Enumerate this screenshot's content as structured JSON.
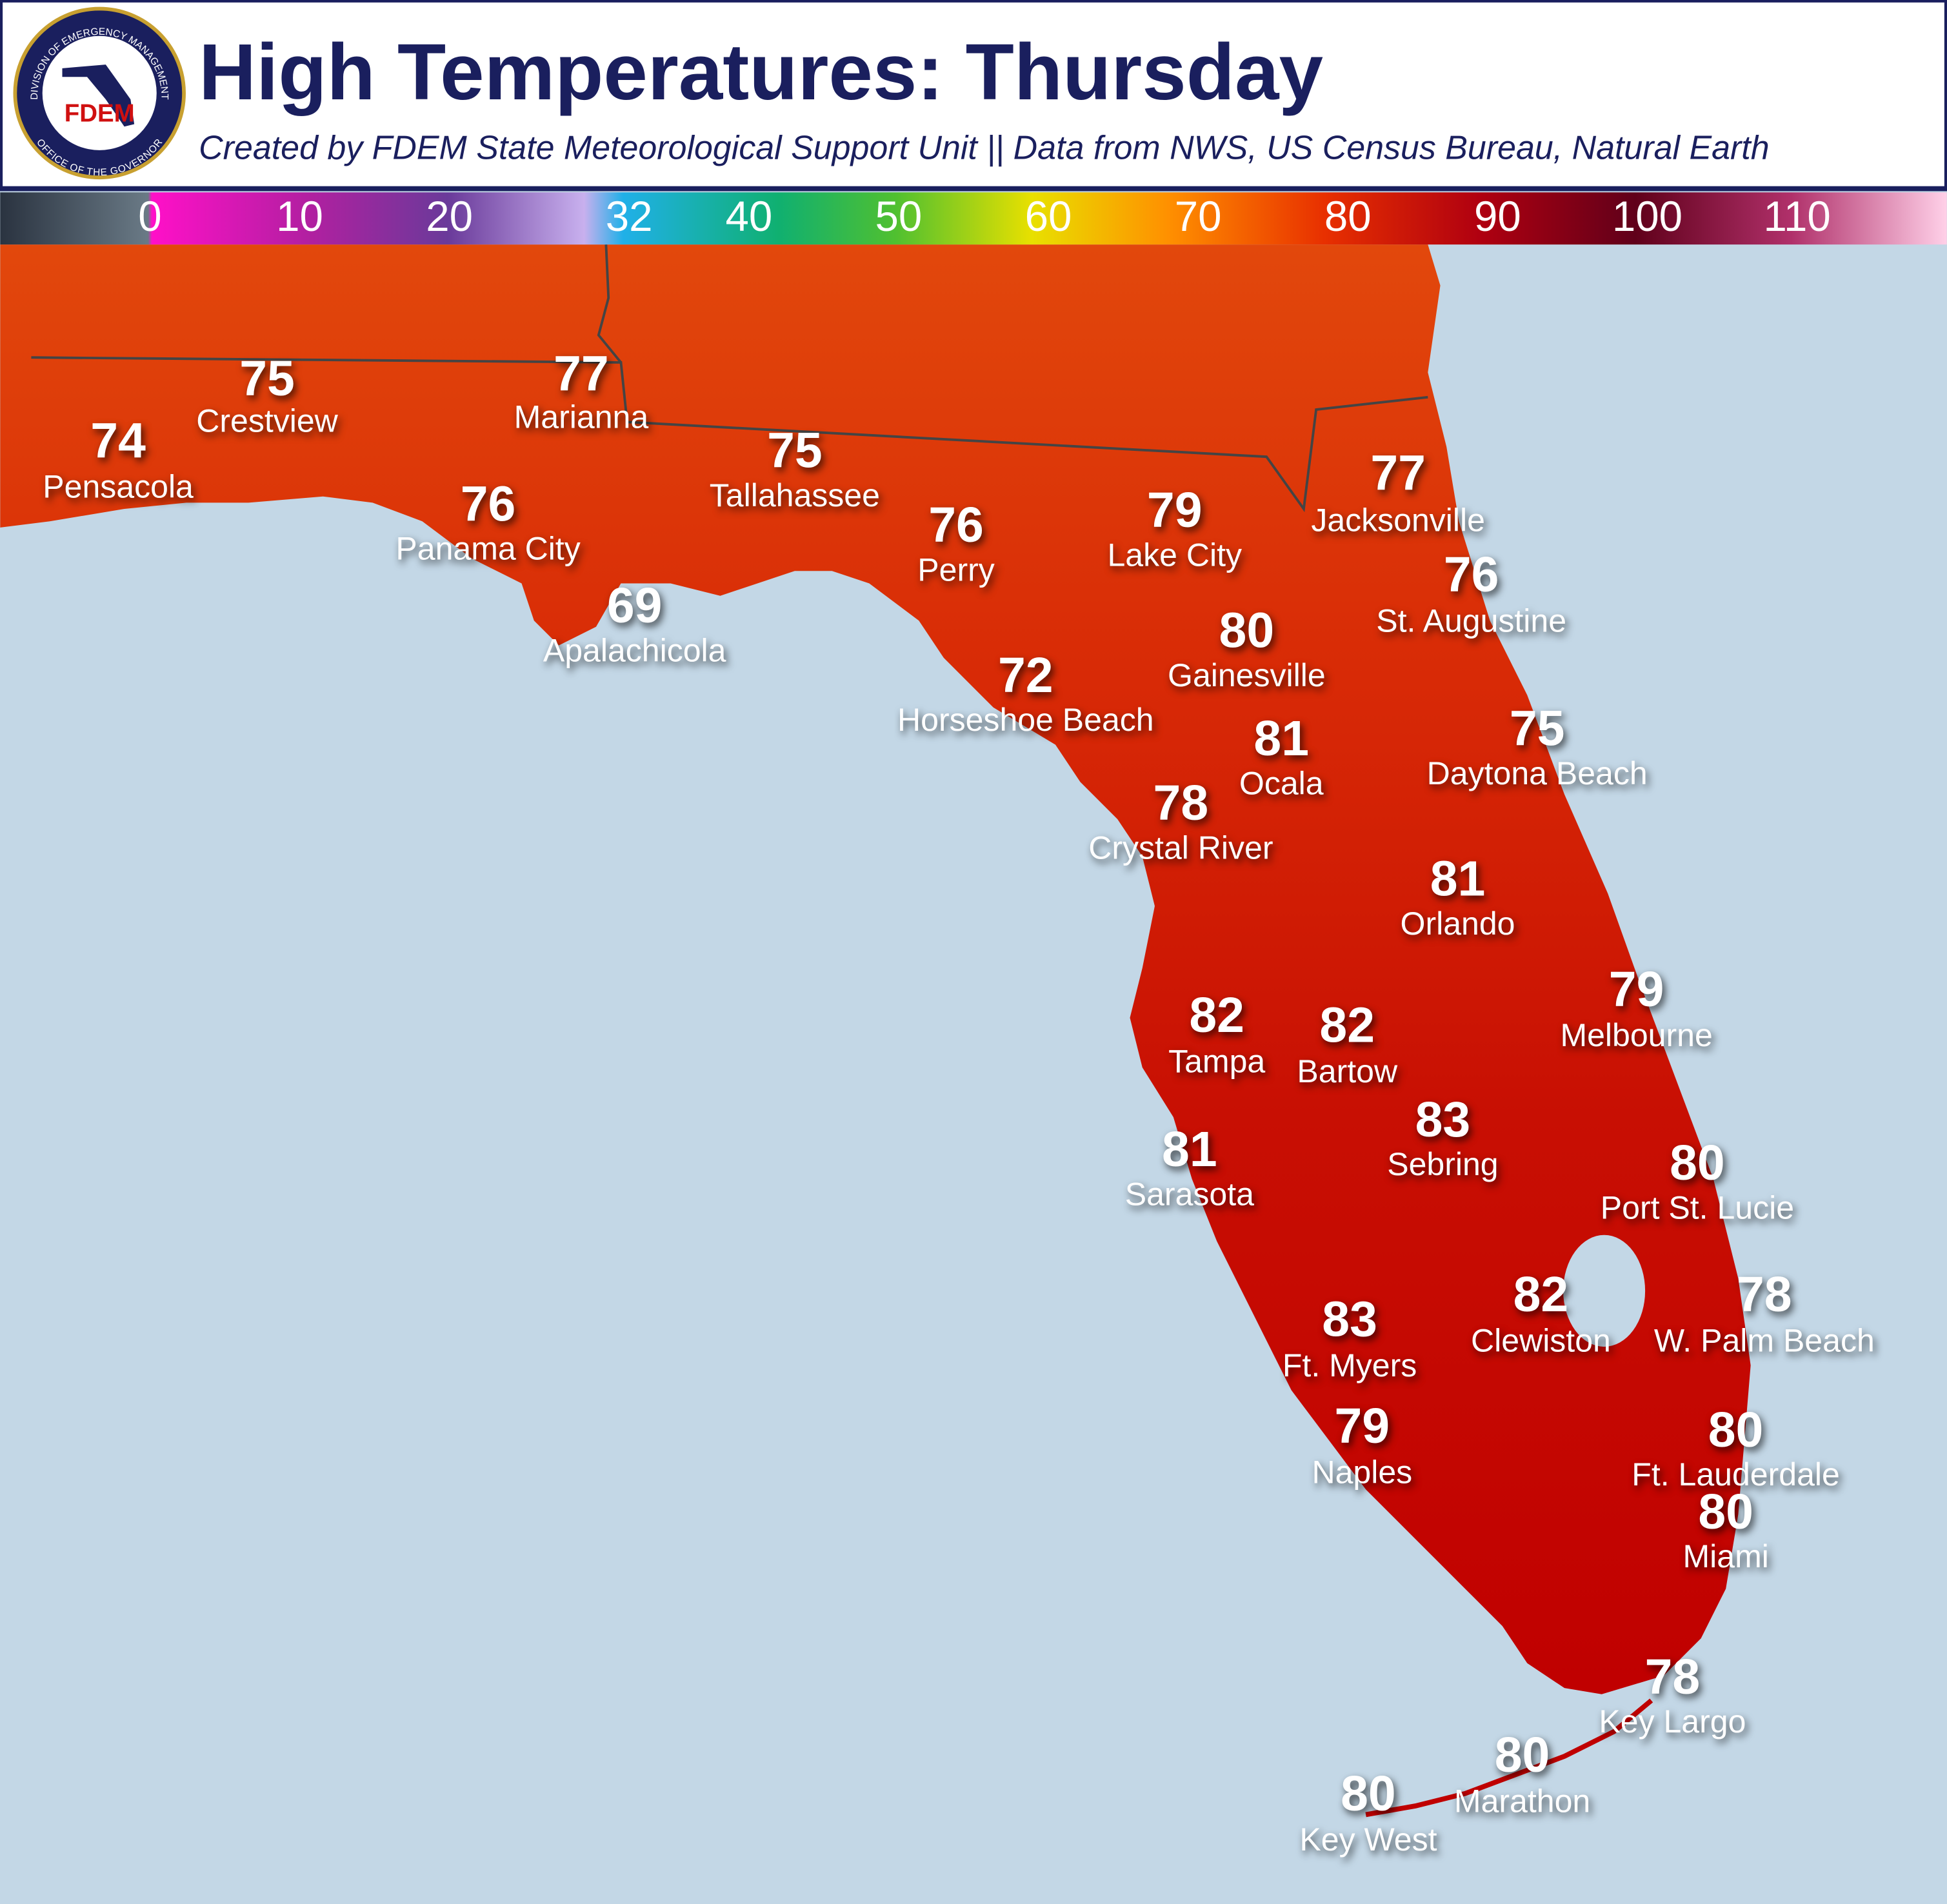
{
  "header": {
    "title": "High Temperatures: Thursday",
    "subtitle": "Created by FDEM State Meteorological Support Unit || Data from NWS, US Census Bureau, Natural Earth",
    "logo": {
      "abbr": "FDEM",
      "top_text": "DIVISION OF EMERGENCY MANAGEMENT",
      "bottom_text": "OFFICE OF THE GOVERNOR"
    }
  },
  "legend": {
    "range": [
      -10,
      120
    ],
    "ticks": [
      0,
      10,
      20,
      32,
      40,
      50,
      60,
      70,
      80,
      90,
      100,
      110
    ]
  },
  "cities": [
    {
      "name": "Crestview",
      "temp": 75
    },
    {
      "name": "Pensacola",
      "temp": 74
    },
    {
      "name": "Marianna",
      "temp": 77
    },
    {
      "name": "Tallahassee",
      "temp": 75
    },
    {
      "name": "Panama City",
      "temp": 76
    },
    {
      "name": "Perry",
      "temp": 76
    },
    {
      "name": "Lake City",
      "temp": 79
    },
    {
      "name": "Jacksonville",
      "temp": 77
    },
    {
      "name": "St. Augustine",
      "temp": 76
    },
    {
      "name": "Apalachicola",
      "temp": 69
    },
    {
      "name": "Gainesville",
      "temp": 80
    },
    {
      "name": "Horseshoe Beach",
      "temp": 72
    },
    {
      "name": "Ocala",
      "temp": 81
    },
    {
      "name": "Daytona Beach",
      "temp": 75
    },
    {
      "name": "Crystal River",
      "temp": 78
    },
    {
      "name": "Orlando",
      "temp": 81
    },
    {
      "name": "Melbourne",
      "temp": 79
    },
    {
      "name": "Tampa",
      "temp": 82
    },
    {
      "name": "Bartow",
      "temp": 82
    },
    {
      "name": "Sebring",
      "temp": 83
    },
    {
      "name": "Sarasota",
      "temp": 81
    },
    {
      "name": "Port St. Lucie",
      "temp": 80
    },
    {
      "name": "Clewiston",
      "temp": 82
    },
    {
      "name": "W. Palm Beach",
      "temp": 78
    },
    {
      "name": "Ft. Myers",
      "temp": 83
    },
    {
      "name": "Naples",
      "temp": 79
    },
    {
      "name": "Ft. Lauderdale",
      "temp": 80
    },
    {
      "name": "Miami",
      "temp": 80
    },
    {
      "name": "Key Largo",
      "temp": 78
    },
    {
      "name": "Marathon",
      "temp": 80
    },
    {
      "name": "Key West",
      "temp": 80
    }
  ]
}
